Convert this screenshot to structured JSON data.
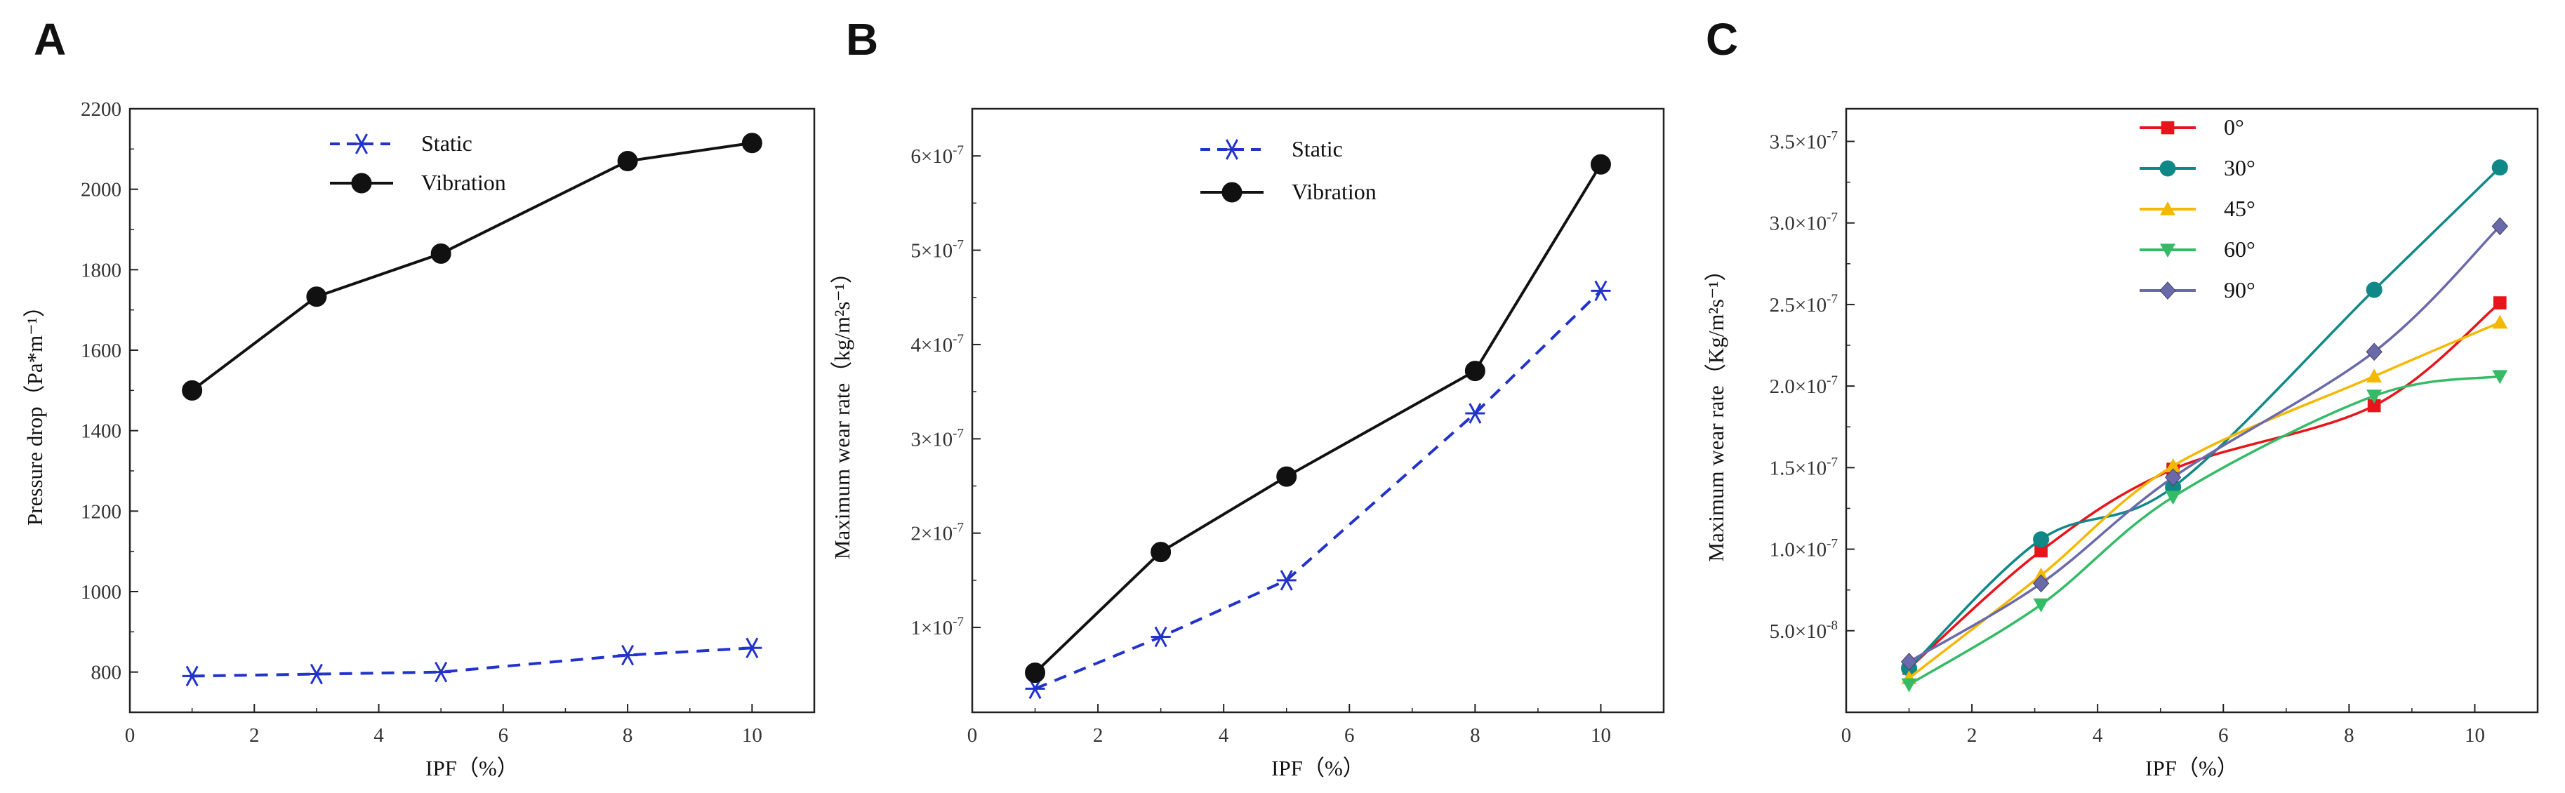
{
  "chart_data": [
    {
      "panel": "A",
      "type": "line",
      "title": "",
      "xlabel": "IPF（%）",
      "ylabel": "Pressure drop（Pa*m⁻¹）",
      "xlim": [
        0,
        11
      ],
      "ylim": [
        700,
        2200
      ],
      "xticks": [
        0,
        2,
        4,
        6,
        8,
        10
      ],
      "yticks": [
        800,
        1000,
        1200,
        1400,
        1600,
        1800,
        2000,
        2200
      ],
      "legend": "top-center",
      "series": [
        {
          "name": "Static",
          "color": "#2233cc",
          "dash": true,
          "marker": "asterisk",
          "x": [
            1,
            3,
            5,
            8,
            10
          ],
          "y": [
            790,
            795,
            800,
            842,
            860
          ]
        },
        {
          "name": "Vibration",
          "color": "#111111",
          "dash": false,
          "marker": "circle",
          "x": [
            1,
            3,
            5,
            8,
            10
          ],
          "y": [
            1500,
            1733,
            1840,
            2070,
            2115
          ]
        }
      ]
    },
    {
      "panel": "B",
      "type": "line",
      "title": "",
      "xlabel": "IPF（%）",
      "ylabel": "Maximum wear rate（kg/m²s⁻¹）",
      "xlim": [
        0,
        11
      ],
      "ylim": [
        1e-08,
        6.5e-07
      ],
      "xticks": [
        0,
        2,
        4,
        6,
        8,
        10
      ],
      "yticks": [
        1e-07,
        2e-07,
        3e-07,
        4e-07,
        5e-07,
        6e-07
      ],
      "ytick_labels": [
        {
          "base": "1×10",
          "exp": "-7"
        },
        {
          "base": "2×10",
          "exp": "-7"
        },
        {
          "base": "3×10",
          "exp": "-7"
        },
        {
          "base": "4×10",
          "exp": "-7"
        },
        {
          "base": "5×10",
          "exp": "-7"
        },
        {
          "base": "6×10",
          "exp": "-7"
        }
      ],
      "legend": "top-center",
      "series": [
        {
          "name": "Static",
          "color": "#2233cc",
          "dash": true,
          "marker": "asterisk",
          "x": [
            1,
            3,
            5,
            8,
            10
          ],
          "y": [
            3.5e-08,
            9e-08,
            1.5e-07,
            3.27e-07,
            4.57e-07
          ]
        },
        {
          "name": "Vibration",
          "color": "#111111",
          "dash": false,
          "marker": "circle",
          "x": [
            1,
            3,
            5,
            8,
            10
          ],
          "y": [
            5.2e-08,
            1.8e-07,
            2.6e-07,
            3.72e-07,
            5.91e-07
          ]
        }
      ]
    },
    {
      "panel": "C",
      "type": "line",
      "title": "",
      "xlabel": "IPF（%）",
      "ylabel": "Maximum wear rate（Kg/m²s⁻¹）",
      "xlim": [
        0,
        11
      ],
      "ylim": [
        0,
        3.7e-07
      ],
      "xticks": [
        0,
        2,
        4,
        6,
        8,
        10
      ],
      "yticks": [
        5e-08,
        1e-07,
        1.5e-07,
        2e-07,
        2.5e-07,
        3e-07,
        3.5e-07
      ],
      "ytick_labels": [
        {
          "base": "5.0×10",
          "exp": "-8"
        },
        {
          "base": "1.0×10",
          "exp": "-7"
        },
        {
          "base": "1.5×10",
          "exp": "-7"
        },
        {
          "base": "2.0×10",
          "exp": "-7"
        },
        {
          "base": "2.5×10",
          "exp": "-7"
        },
        {
          "base": "3.0×10",
          "exp": "-7"
        },
        {
          "base": "3.5×10",
          "exp": "-7"
        }
      ],
      "legend": "top-center",
      "series": [
        {
          "name": "0°",
          "color": "#e8141b",
          "marker": "square",
          "x": [
            1,
            3.1,
            5.2,
            8.4,
            10.4
          ],
          "y": [
            2.7e-08,
            9.9e-08,
            1.49e-07,
            1.88e-07,
            2.51e-07
          ]
        },
        {
          "name": "30°",
          "color": "#118888",
          "marker": "circle",
          "x": [
            1,
            3.1,
            5.2,
            8.4,
            10.4
          ],
          "y": [
            2.7e-08,
            1.06e-07,
            1.38e-07,
            2.59e-07,
            3.34e-07
          ]
        },
        {
          "name": "45°",
          "color": "#f5b800",
          "marker": "triangle-up",
          "x": [
            1,
            3.1,
            5.2,
            8.4,
            10.4
          ],
          "y": [
            2.1e-08,
            8.4e-08,
            1.51e-07,
            2.06e-07,
            2.39e-07
          ]
        },
        {
          "name": "60°",
          "color": "#33bb66",
          "marker": "triangle-down",
          "x": [
            1,
            3.1,
            5.2,
            8.4,
            10.4
          ],
          "y": [
            1.7e-08,
            6.6e-08,
            1.32e-07,
            1.94e-07,
            2.06e-07
          ]
        },
        {
          "name": "90°",
          "color": "#6a6aaa",
          "marker": "diamond",
          "x": [
            1,
            3.1,
            5.2,
            8.4,
            10.4
          ],
          "y": [
            3.1e-08,
            7.9e-08,
            1.44e-07,
            2.21e-07,
            2.98e-07
          ]
        }
      ]
    }
  ]
}
